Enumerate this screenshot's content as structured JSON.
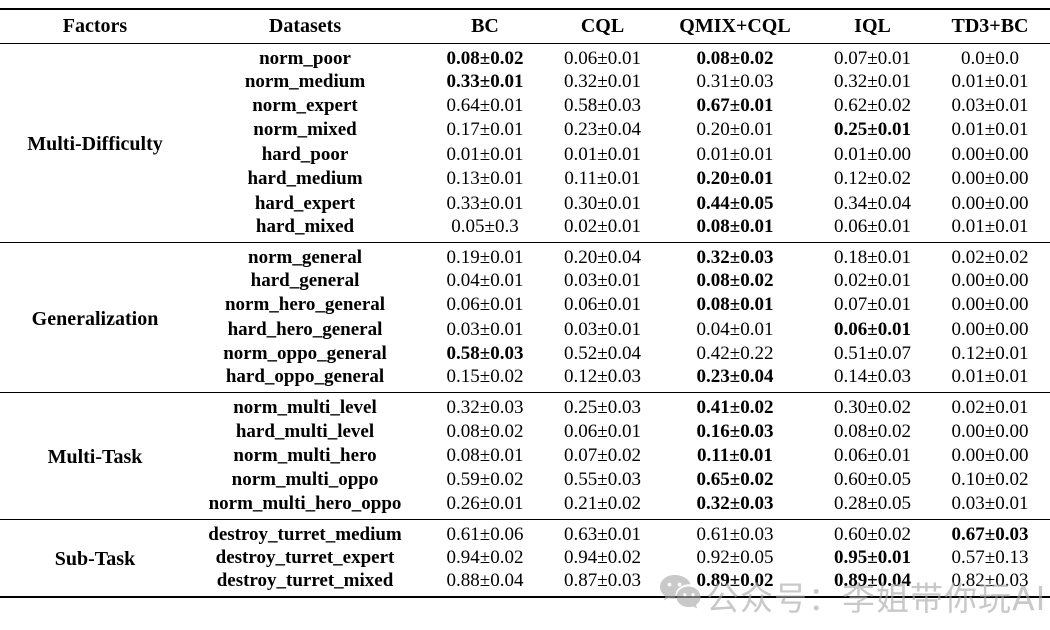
{
  "table": {
    "columns": [
      "Factors",
      "Datasets",
      "BC",
      "CQL",
      "QMIX+CQL",
      "IQL",
      "TD3+BC"
    ],
    "sections": [
      {
        "factor": "Multi-Difficulty",
        "rows": [
          {
            "dataset": "norm_poor",
            "values": [
              {
                "v": "0.08±0.02",
                "b": true
              },
              {
                "v": "0.06±0.01",
                "b": false
              },
              {
                "v": "0.08±0.02",
                "b": true
              },
              {
                "v": "0.07±0.01",
                "b": false
              },
              {
                "v": "0.0±0.0",
                "b": false
              }
            ]
          },
          {
            "dataset": "norm_medium",
            "values": [
              {
                "v": "0.33±0.01",
                "b": true
              },
              {
                "v": "0.32±0.01",
                "b": false
              },
              {
                "v": "0.31±0.03",
                "b": false
              },
              {
                "v": "0.32±0.01",
                "b": false
              },
              {
                "v": "0.01±0.01",
                "b": false
              }
            ]
          },
          {
            "dataset": "norm_expert",
            "values": [
              {
                "v": "0.64±0.01",
                "b": false
              },
              {
                "v": "0.58±0.03",
                "b": false
              },
              {
                "v": "0.67±0.01",
                "b": true
              },
              {
                "v": "0.62±0.02",
                "b": false
              },
              {
                "v": "0.03±0.01",
                "b": false
              }
            ]
          },
          {
            "dataset": "norm_mixed",
            "values": [
              {
                "v": "0.17±0.01",
                "b": false
              },
              {
                "v": "0.23±0.04",
                "b": false
              },
              {
                "v": "0.20±0.01",
                "b": false
              },
              {
                "v": "0.25±0.01",
                "b": true
              },
              {
                "v": "0.01±0.01",
                "b": false
              }
            ]
          },
          {
            "dataset": "hard_poor",
            "values": [
              {
                "v": "0.01±0.01",
                "b": false
              },
              {
                "v": "0.01±0.01",
                "b": false
              },
              {
                "v": "0.01±0.01",
                "b": false
              },
              {
                "v": "0.01±0.00",
                "b": false
              },
              {
                "v": "0.00±0.00",
                "b": false
              }
            ]
          },
          {
            "dataset": "hard_medium",
            "values": [
              {
                "v": "0.13±0.01",
                "b": false
              },
              {
                "v": "0.11±0.01",
                "b": false
              },
              {
                "v": "0.20±0.01",
                "b": true
              },
              {
                "v": "0.12±0.02",
                "b": false
              },
              {
                "v": "0.00±0.00",
                "b": false
              }
            ]
          },
          {
            "dataset": "hard_expert",
            "values": [
              {
                "v": "0.33±0.01",
                "b": false
              },
              {
                "v": "0.30±0.01",
                "b": false
              },
              {
                "v": "0.44±0.05",
                "b": true
              },
              {
                "v": "0.34±0.04",
                "b": false
              },
              {
                "v": "0.00±0.00",
                "b": false
              }
            ]
          },
          {
            "dataset": "hard_mixed",
            "values": [
              {
                "v": "0.05±0.3",
                "b": false
              },
              {
                "v": "0.02±0.01",
                "b": false
              },
              {
                "v": "0.08±0.01",
                "b": true
              },
              {
                "v": "0.06±0.01",
                "b": false
              },
              {
                "v": "0.01±0.01",
                "b": false
              }
            ]
          }
        ]
      },
      {
        "factor": "Generalization",
        "rows": [
          {
            "dataset": "norm_general",
            "values": [
              {
                "v": "0.19±0.01",
                "b": false
              },
              {
                "v": "0.20±0.04",
                "b": false
              },
              {
                "v": "0.32±0.03",
                "b": true
              },
              {
                "v": "0.18±0.01",
                "b": false
              },
              {
                "v": "0.02±0.02",
                "b": false
              }
            ]
          },
          {
            "dataset": "hard_general",
            "values": [
              {
                "v": "0.04±0.01",
                "b": false
              },
              {
                "v": "0.03±0.01",
                "b": false
              },
              {
                "v": "0.08±0.02",
                "b": true
              },
              {
                "v": "0.02±0.01",
                "b": false
              },
              {
                "v": "0.00±0.00",
                "b": false
              }
            ]
          },
          {
            "dataset": "norm_hero_general",
            "values": [
              {
                "v": "0.06±0.01",
                "b": false
              },
              {
                "v": "0.06±0.01",
                "b": false
              },
              {
                "v": "0.08±0.01",
                "b": true
              },
              {
                "v": "0.07±0.01",
                "b": false
              },
              {
                "v": "0.00±0.00",
                "b": false
              }
            ]
          },
          {
            "dataset": "hard_hero_general",
            "values": [
              {
                "v": "0.03±0.01",
                "b": false
              },
              {
                "v": "0.03±0.01",
                "b": false
              },
              {
                "v": "0.04±0.01",
                "b": false
              },
              {
                "v": "0.06±0.01",
                "b": true
              },
              {
                "v": "0.00±0.00",
                "b": false
              }
            ]
          },
          {
            "dataset": "norm_oppo_general",
            "values": [
              {
                "v": "0.58±0.03",
                "b": true
              },
              {
                "v": "0.52±0.04",
                "b": false
              },
              {
                "v": "0.42±0.22",
                "b": false
              },
              {
                "v": "0.51±0.07",
                "b": false
              },
              {
                "v": "0.12±0.01",
                "b": false
              }
            ]
          },
          {
            "dataset": "hard_oppo_general",
            "values": [
              {
                "v": "0.15±0.02",
                "b": false
              },
              {
                "v": "0.12±0.03",
                "b": false
              },
              {
                "v": "0.23±0.04",
                "b": true
              },
              {
                "v": "0.14±0.03",
                "b": false
              },
              {
                "v": "0.01±0.01",
                "b": false
              }
            ]
          }
        ]
      },
      {
        "factor": "Multi-Task",
        "rows": [
          {
            "dataset": "norm_multi_level",
            "values": [
              {
                "v": "0.32±0.03",
                "b": false
              },
              {
                "v": "0.25±0.03",
                "b": false
              },
              {
                "v": "0.41±0.02",
                "b": true
              },
              {
                "v": "0.30±0.02",
                "b": false
              },
              {
                "v": "0.02±0.01",
                "b": false
              }
            ]
          },
          {
            "dataset": "hard_multi_level",
            "values": [
              {
                "v": "0.08±0.02",
                "b": false
              },
              {
                "v": "0.06±0.01",
                "b": false
              },
              {
                "v": "0.16±0.03",
                "b": true
              },
              {
                "v": "0.08±0.02",
                "b": false
              },
              {
                "v": "0.00±0.00",
                "b": false
              }
            ]
          },
          {
            "dataset": "norm_multi_hero",
            "values": [
              {
                "v": "0.08±0.01",
                "b": false
              },
              {
                "v": "0.07±0.02",
                "b": false
              },
              {
                "v": "0.11±0.01",
                "b": true
              },
              {
                "v": "0.06±0.01",
                "b": false
              },
              {
                "v": "0.00±0.00",
                "b": false
              }
            ]
          },
          {
            "dataset": "norm_multi_oppo",
            "values": [
              {
                "v": "0.59±0.02",
                "b": false
              },
              {
                "v": "0.55±0.03",
                "b": false
              },
              {
                "v": "0.65±0.02",
                "b": true
              },
              {
                "v": "0.60±0.05",
                "b": false
              },
              {
                "v": "0.10±0.02",
                "b": false
              }
            ]
          },
          {
            "dataset": "norm_multi_hero_oppo",
            "values": [
              {
                "v": "0.26±0.01",
                "b": false
              },
              {
                "v": "0.21±0.02",
                "b": false
              },
              {
                "v": "0.32±0.03",
                "b": true
              },
              {
                "v": "0.28±0.05",
                "b": false
              },
              {
                "v": "0.03±0.01",
                "b": false
              }
            ]
          }
        ]
      },
      {
        "factor": "Sub-Task",
        "rows": [
          {
            "dataset": "destroy_turret_medium",
            "values": [
              {
                "v": "0.61±0.06",
                "b": false
              },
              {
                "v": "0.63±0.01",
                "b": false
              },
              {
                "v": "0.61±0.03",
                "b": false
              },
              {
                "v": "0.60±0.02",
                "b": false
              },
              {
                "v": "0.67±0.03",
                "b": true
              }
            ]
          },
          {
            "dataset": "destroy_turret_expert",
            "values": [
              {
                "v": "0.94±0.02",
                "b": false
              },
              {
                "v": "0.94±0.02",
                "b": false
              },
              {
                "v": "0.92±0.05",
                "b": false
              },
              {
                "v": "0.95±0.01",
                "b": true
              },
              {
                "v": "0.57±0.13",
                "b": false
              }
            ]
          },
          {
            "dataset": "destroy_turret_mixed",
            "values": [
              {
                "v": "0.88±0.04",
                "b": false
              },
              {
                "v": "0.87±0.03",
                "b": false
              },
              {
                "v": "0.89±0.02",
                "b": true
              },
              {
                "v": "0.89±0.04",
                "b": true
              },
              {
                "v": "0.82±0.03",
                "b": false
              }
            ]
          }
        ]
      }
    ]
  },
  "watermark": {
    "icon": "wechat-icon",
    "text": "公众号：李姐带你玩AI",
    "color": "#a9a9a9"
  },
  "colors": {
    "text": "#000000",
    "rule": "#000000",
    "background": "#ffffff"
  }
}
